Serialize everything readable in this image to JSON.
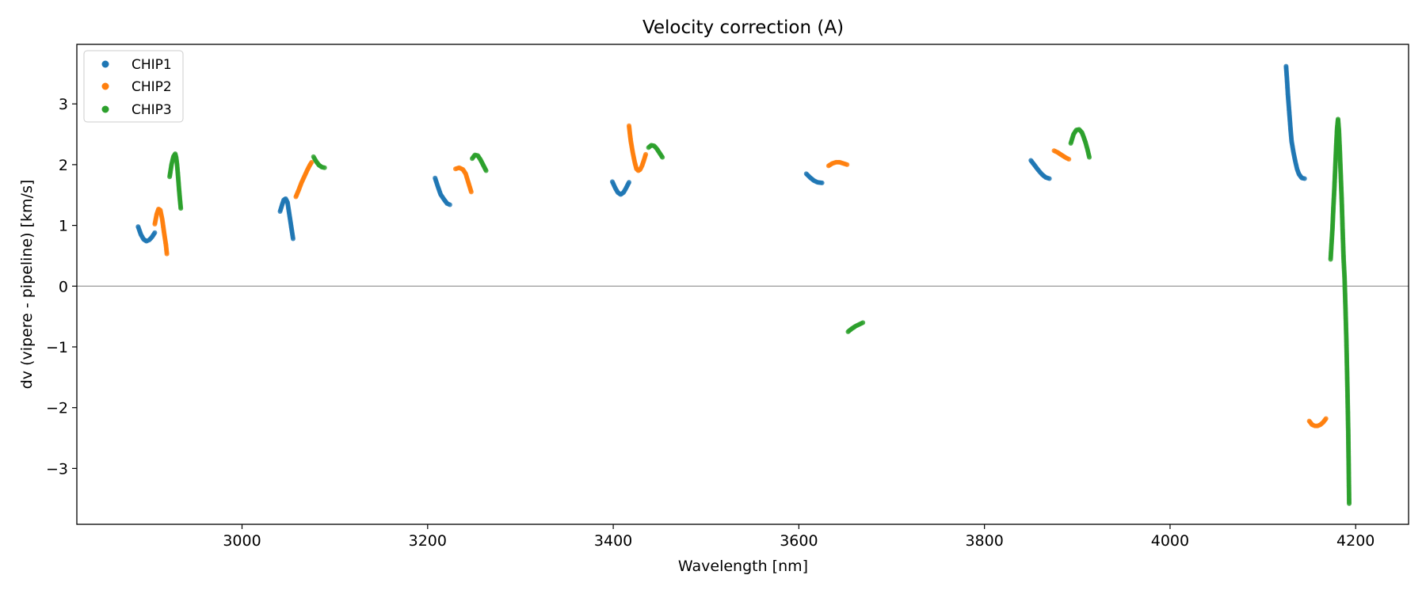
{
  "chart_data": {
    "type": "scatter",
    "title": "Velocity correction (A)",
    "xlabel": "Wavelength [nm]",
    "ylabel": "dv (vipere - pipeline) [km/s]",
    "xlim": [
      2822,
      4257
    ],
    "ylim": [
      -3.92,
      3.98
    ],
    "xticks": [
      3000,
      3200,
      3400,
      3600,
      3800,
      4000,
      4200
    ],
    "yticks": [
      -3,
      -2,
      -1,
      0,
      1,
      2,
      3
    ],
    "zero_line": true,
    "grid": false,
    "legend": "top-left",
    "series": [
      {
        "name": "CHIP1",
        "color": "#1f77b4",
        "segments": [
          {
            "x": [
              2888,
              2891,
              2894,
              2897,
              2900,
              2903,
              2906
            ],
            "y": [
              0.98,
              0.85,
              0.77,
              0.74,
              0.76,
              0.81,
              0.88
            ]
          },
          {
            "x": [
              3041,
              3043,
              3045,
              3047,
              3049,
              3051,
              3053,
              3055
            ],
            "y": [
              1.23,
              1.33,
              1.42,
              1.44,
              1.38,
              1.18,
              0.98,
              0.78
            ]
          },
          {
            "x": [
              3208,
              3211,
              3214,
              3218,
              3221,
              3224
            ],
            "y": [
              1.78,
              1.64,
              1.51,
              1.42,
              1.36,
              1.34
            ]
          },
          {
            "x": [
              3399,
              3402,
              3405,
              3408,
              3411,
              3414,
              3417
            ],
            "y": [
              1.72,
              1.62,
              1.54,
              1.51,
              1.54,
              1.62,
              1.71
            ]
          },
          {
            "x": [
              3608,
              3612,
              3616,
              3620,
              3625
            ],
            "y": [
              1.85,
              1.79,
              1.74,
              1.71,
              1.7
            ]
          },
          {
            "x": [
              3850,
              3854,
              3858,
              3862,
              3866,
              3870
            ],
            "y": [
              2.07,
              1.99,
              1.91,
              1.84,
              1.79,
              1.77
            ]
          },
          {
            "x": [
              4125,
              4126,
              4127,
              4128,
              4129,
              4130,
              4131,
              4133,
              4135,
              4137,
              4139,
              4142,
              4145
            ],
            "y": [
              3.62,
              3.4,
              3.15,
              2.95,
              2.75,
              2.55,
              2.38,
              2.2,
              2.05,
              1.92,
              1.84,
              1.78,
              1.77
            ]
          }
        ]
      },
      {
        "name": "CHIP2",
        "color": "#ff7f0e",
        "segments": [
          {
            "x": [
              2906,
              2908,
              2910,
              2912,
              2914,
              2916,
              2918,
              2919
            ],
            "y": [
              1.02,
              1.18,
              1.27,
              1.25,
              1.1,
              0.88,
              0.68,
              0.53
            ]
          },
          {
            "x": [
              3058,
              3061,
              3064,
              3067,
              3070,
              3073,
              3075
            ],
            "y": [
              1.47,
              1.58,
              1.7,
              1.8,
              1.9,
              1.99,
              2.04
            ]
          },
          {
            "x": [
              3230,
              3234,
              3238,
              3241,
              3243,
              3245,
              3247
            ],
            "y": [
              1.93,
              1.95,
              1.92,
              1.85,
              1.75,
              1.65,
              1.55
            ]
          },
          {
            "x": [
              3417,
              3418,
              3419,
              3421,
              3423,
              3425,
              3427,
              3429,
              3431,
              3433,
              3435
            ],
            "y": [
              2.64,
              2.5,
              2.38,
              2.2,
              2.05,
              1.93,
              1.9,
              1.92,
              1.98,
              2.07,
              2.17
            ]
          },
          {
            "x": [
              3632,
              3636,
              3640,
              3644,
              3648,
              3652
            ],
            "y": [
              1.98,
              2.02,
              2.04,
              2.04,
              2.02,
              2.0
            ]
          },
          {
            "x": [
              3875,
              3879,
              3883,
              3887,
              3891
            ],
            "y": [
              2.23,
              2.2,
              2.16,
              2.12,
              2.09
            ]
          },
          {
            "x": [
              4150,
              4153,
              4156,
              4159,
              4162,
              4165,
              4168
            ],
            "y": [
              -2.22,
              -2.28,
              -2.3,
              -2.3,
              -2.28,
              -2.24,
              -2.18
            ]
          }
        ]
      },
      {
        "name": "CHIP3",
        "color": "#2ca02c",
        "segments": [
          {
            "x": [
              2922,
              2924,
              2926,
              2928,
              2929,
              2930,
              2931,
              2932,
              2933,
              2934
            ],
            "y": [
              1.8,
              2.0,
              2.13,
              2.18,
              2.12,
              2.0,
              1.82,
              1.62,
              1.44,
              1.28
            ]
          },
          {
            "x": [
              3077,
              3080,
              3083,
              3086,
              3089
            ],
            "y": [
              2.13,
              2.05,
              1.99,
              1.96,
              1.95
            ]
          },
          {
            "x": [
              3248,
              3251,
              3254,
              3257,
              3260,
              3263
            ],
            "y": [
              2.1,
              2.16,
              2.15,
              2.08,
              1.99,
              1.9
            ]
          },
          {
            "x": [
              3438,
              3441,
              3444,
              3447,
              3450,
              3453
            ],
            "y": [
              2.28,
              2.32,
              2.31,
              2.26,
              2.19,
              2.12
            ]
          },
          {
            "x": [
              3653,
              3657,
              3661,
              3665,
              3669
            ],
            "y": [
              -0.75,
              -0.7,
              -0.66,
              -0.63,
              -0.6
            ]
          },
          {
            "x": [
              3893,
              3896,
              3899,
              3902,
              3905,
              3907,
              3909,
              3911,
              3913
            ],
            "y": [
              2.35,
              2.5,
              2.57,
              2.58,
              2.53,
              2.45,
              2.36,
              2.25,
              2.12
            ]
          },
          {
            "x": [
              4173,
              4174,
              4175,
              4176,
              4177,
              4178,
              4179,
              4180,
              4181,
              4182,
              4183,
              4184,
              4185,
              4186,
              4187,
              4188,
              4189,
              4190,
              4191,
              4192,
              4193
            ],
            "y": [
              0.44,
              0.7,
              0.95,
              1.3,
              1.6,
              1.95,
              2.3,
              2.6,
              2.75,
              2.55,
              2.2,
              1.8,
              1.4,
              0.9,
              0.45,
              0.15,
              -0.35,
              -0.9,
              -1.6,
              -2.4,
              -3.58
            ]
          }
        ]
      }
    ]
  }
}
